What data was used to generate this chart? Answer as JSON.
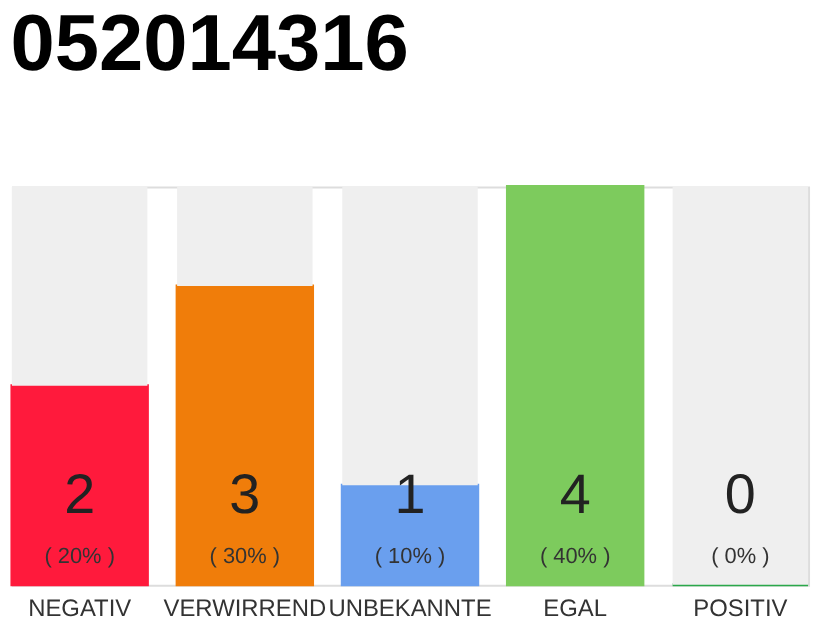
{
  "chart_data": {
    "type": "bar",
    "title": "052014316",
    "stacked": true,
    "categories": [
      "NEGATIV",
      "VERWIRREND",
      "UNBEKANNTE",
      "EGAL",
      "POSITIV"
    ],
    "series": [
      {
        "colors": [
          "#ff1a3c",
          "#f07d0a",
          "#6a9fee",
          "#7dcb5d",
          "#2aa84a"
        ],
        "values": [
          2,
          3,
          1,
          4,
          0
        ],
        "data_labels": true
      },
      {
        "color": "#efefef",
        "values": [
          2,
          1,
          3,
          0,
          4
        ]
      }
    ],
    "annotations": [
      "( 20% )",
      "( 30% )",
      "( 10% )",
      "( 40% )",
      "( 0% )"
    ],
    "ylim": [
      0,
      4
    ],
    "tick_labels": "x",
    "grid": false
  }
}
